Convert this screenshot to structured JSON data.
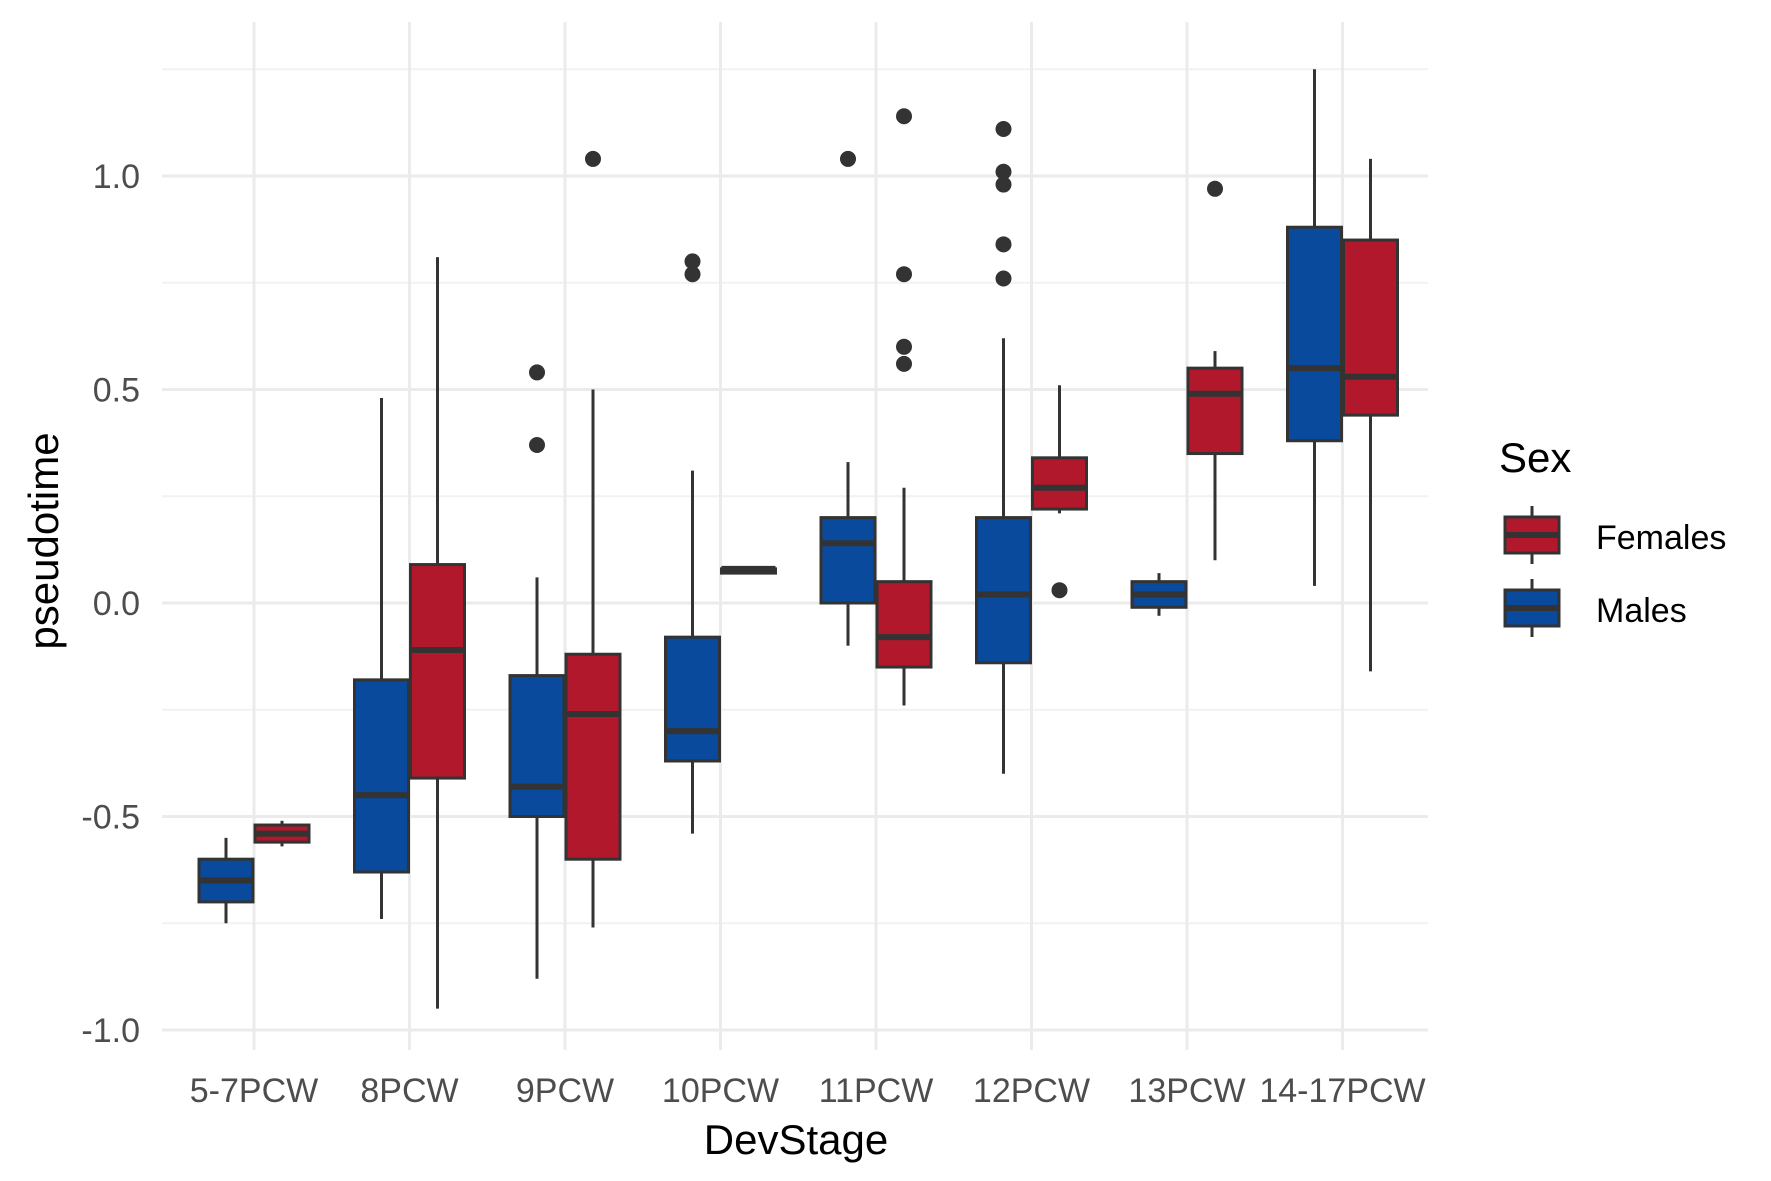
{
  "chart_data": {
    "type": "box",
    "xlabel": "DevStage",
    "ylabel": "pseudotime",
    "categories": [
      "5-7PCW",
      "8PCW",
      "9PCW",
      "10PCW",
      "11PCW",
      "12PCW",
      "13PCW",
      "14-17PCW"
    ],
    "ylim": [
      -1.05,
      1.25
    ],
    "yticks": [
      -1.0,
      -0.5,
      0.0,
      0.5,
      1.0
    ],
    "ytick_labels": [
      "-1.0",
      "-0.5",
      "0.0",
      "0.5",
      "1.0"
    ],
    "grid": true,
    "legend": {
      "title": "Sex",
      "position": "right",
      "entries": [
        "Females",
        "Males"
      ]
    },
    "colors": {
      "Females": "#b2182b",
      "Males": "#0a4a9c",
      "outline": "#333333"
    },
    "series": [
      {
        "name": "Males",
        "boxes": [
          {
            "category": "5-7PCW",
            "lower": -0.75,
            "q1": -0.7,
            "median": -0.65,
            "q3": -0.6,
            "upper": -0.55,
            "outliers": []
          },
          {
            "category": "8PCW",
            "lower": -0.74,
            "q1": -0.63,
            "median": -0.45,
            "q3": -0.18,
            "upper": 0.48,
            "outliers": []
          },
          {
            "category": "9PCW",
            "lower": -0.88,
            "q1": -0.5,
            "median": -0.43,
            "q3": -0.17,
            "upper": 0.06,
            "outliers": [
              0.54,
              0.37
            ]
          },
          {
            "category": "10PCW",
            "lower": -0.54,
            "q1": -0.37,
            "median": -0.3,
            "q3": -0.08,
            "upper": 0.31,
            "outliers": [
              0.8,
              0.77
            ]
          },
          {
            "category": "11PCW",
            "lower": -0.1,
            "q1": 0.0,
            "median": 0.14,
            "q3": 0.2,
            "upper": 0.33,
            "outliers": [
              1.04
            ]
          },
          {
            "category": "12PCW",
            "lower": -0.4,
            "q1": -0.14,
            "median": 0.02,
            "q3": 0.2,
            "upper": 0.62,
            "outliers": [
              1.11,
              1.01,
              0.98,
              0.84,
              0.76
            ]
          },
          {
            "category": "13PCW",
            "lower": -0.03,
            "q1": -0.01,
            "median": 0.02,
            "q3": 0.05,
            "upper": 0.07,
            "outliers": []
          },
          {
            "category": "14-17PCW",
            "lower": 0.04,
            "q1": 0.38,
            "median": 0.55,
            "q3": 0.88,
            "upper": 1.25,
            "outliers": []
          }
        ]
      },
      {
        "name": "Females",
        "boxes": [
          {
            "category": "5-7PCW",
            "lower": -0.57,
            "q1": -0.56,
            "median": -0.54,
            "q3": -0.52,
            "upper": -0.51,
            "outliers": []
          },
          {
            "category": "8PCW",
            "lower": -0.95,
            "q1": -0.41,
            "median": -0.11,
            "q3": 0.09,
            "upper": 0.81,
            "outliers": []
          },
          {
            "category": "9PCW",
            "lower": -0.76,
            "q1": -0.6,
            "median": -0.26,
            "q3": -0.12,
            "upper": 0.5,
            "outliers": [
              1.04
            ]
          },
          {
            "category": "10PCW",
            "lower": 0.07,
            "q1": 0.07,
            "median": 0.08,
            "q3": 0.08,
            "upper": 0.08,
            "outliers": []
          },
          {
            "category": "11PCW",
            "lower": -0.24,
            "q1": -0.15,
            "median": -0.08,
            "q3": 0.05,
            "upper": 0.27,
            "outliers": [
              1.14,
              0.77,
              0.6,
              0.56
            ]
          },
          {
            "category": "12PCW",
            "lower": 0.21,
            "q1": 0.22,
            "median": 0.27,
            "q3": 0.34,
            "upper": 0.51,
            "outliers": [
              0.03
            ]
          },
          {
            "category": "13PCW",
            "lower": 0.1,
            "q1": 0.35,
            "median": 0.49,
            "q3": 0.55,
            "upper": 0.59,
            "outliers": [
              0.97
            ]
          },
          {
            "category": "14-17PCW",
            "lower": -0.16,
            "q1": 0.44,
            "median": 0.53,
            "q3": 0.85,
            "upper": 1.04,
            "outliers": []
          }
        ]
      }
    ]
  }
}
